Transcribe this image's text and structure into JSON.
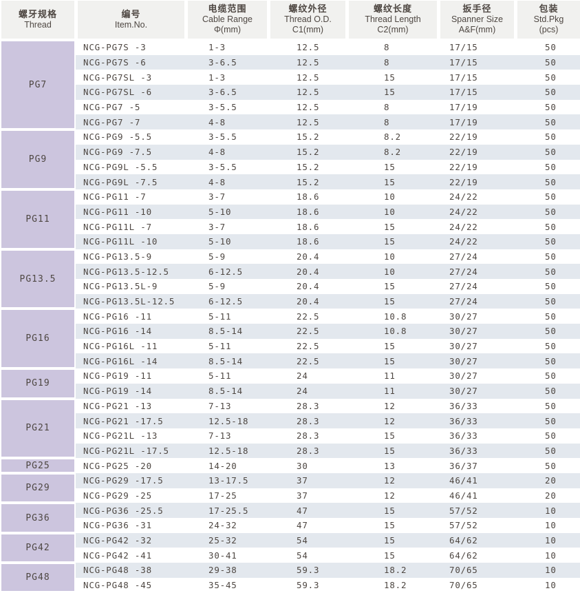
{
  "colors": {
    "thread_block": "#ccc5de",
    "header_bg": "#f1f1ef",
    "row_stripe": "#e3e8ee",
    "text": "#4e4742"
  },
  "columns": [
    {
      "zh": "螺牙规格",
      "en": "Thread",
      "sub": ""
    },
    {
      "zh": "编号",
      "en": "Item.No.",
      "sub": ""
    },
    {
      "zh": "电缆范围",
      "en": "Cable Range",
      "sub": "Φ(mm)"
    },
    {
      "zh": "螺纹外径",
      "en": "Thread O.D.",
      "sub": "C1(mm)"
    },
    {
      "zh": "螺纹长度",
      "en": "Thread Length",
      "sub": "C2(mm)"
    },
    {
      "zh": "扳手径",
      "en": "Spanner Size",
      "sub": "A&F(mm)"
    },
    {
      "zh": "包装",
      "en": "Std.Pkg",
      "sub": "(pcs)"
    }
  ],
  "groups": [
    {
      "thread": "PG7",
      "rows": [
        {
          "item": "NCG-PG7S -3",
          "cable": "1-3",
          "od": "12.5",
          "len": "8",
          "spanner": "17/15",
          "pkg": "50"
        },
        {
          "item": "NCG-PG7S -6",
          "cable": "3-6.5",
          "od": "12.5",
          "len": "8",
          "spanner": "17/15",
          "pkg": "50"
        },
        {
          "item": "NCG-PG7SL -3",
          "cable": "1-3",
          "od": "12.5",
          "len": "15",
          "spanner": "17/15",
          "pkg": "50"
        },
        {
          "item": "NCG-PG7SL -6",
          "cable": "3-6.5",
          "od": "12.5",
          "len": "15",
          "spanner": "17/15",
          "pkg": "50"
        },
        {
          "item": "NCG-PG7 -5",
          "cable": "3-5.5",
          "od": "12.5",
          "len": "8",
          "spanner": "17/19",
          "pkg": "50"
        },
        {
          "item": "NCG-PG7 -7",
          "cable": "4-8",
          "od": "12.5",
          "len": "8",
          "spanner": "17/19",
          "pkg": "50"
        }
      ]
    },
    {
      "thread": "PG9",
      "rows": [
        {
          "item": "NCG-PG9 -5.5",
          "cable": "3-5.5",
          "od": "15.2",
          "len": "8.2",
          "spanner": "22/19",
          "pkg": "50"
        },
        {
          "item": "NCG-PG9 -7.5",
          "cable": "4-8",
          "od": "15.2",
          "len": "8.2",
          "spanner": "22/19",
          "pkg": "50"
        },
        {
          "item": "NCG-PG9L -5.5",
          "cable": "3-5.5",
          "od": "15.2",
          "len": "15",
          "spanner": "22/19",
          "pkg": "50"
        },
        {
          "item": "NCG-PG9L -7.5",
          "cable": "4-8",
          "od": "15.2",
          "len": "15",
          "spanner": "22/19",
          "pkg": "50"
        }
      ]
    },
    {
      "thread": "PG11",
      "rows": [
        {
          "item": "NCG-PG11 -7",
          "cable": "3-7",
          "od": "18.6",
          "len": "10",
          "spanner": "24/22",
          "pkg": "50"
        },
        {
          "item": "NCG-PG11 -10",
          "cable": "5-10",
          "od": "18.6",
          "len": "10",
          "spanner": "24/22",
          "pkg": "50"
        },
        {
          "item": "NCG-PG11L -7",
          "cable": "3-7",
          "od": "18.6",
          "len": "15",
          "spanner": "24/22",
          "pkg": "50"
        },
        {
          "item": "NCG-PG11L -10",
          "cable": "5-10",
          "od": "18.6",
          "len": "15",
          "spanner": "24/22",
          "pkg": "50"
        }
      ]
    },
    {
      "thread": "PG13.5",
      "rows": [
        {
          "item": "NCG-PG13.5-9",
          "cable": "5-9",
          "od": "20.4",
          "len": "10",
          "spanner": "27/24",
          "pkg": "50"
        },
        {
          "item": "NCG-PG13.5-12.5",
          "cable": "6-12.5",
          "od": "20.4",
          "len": "10",
          "spanner": "27/24",
          "pkg": "50"
        },
        {
          "item": "NCG-PG13.5L-9",
          "cable": "5-9",
          "od": "20.4",
          "len": "15",
          "spanner": "27/24",
          "pkg": "50"
        },
        {
          "item": "NCG-PG13.5L-12.5",
          "cable": "6-12.5",
          "od": "20.4",
          "len": "15",
          "spanner": "27/24",
          "pkg": "50"
        }
      ]
    },
    {
      "thread": "PG16",
      "rows": [
        {
          "item": "NCG-PG16 -11",
          "cable": "5-11",
          "od": "22.5",
          "len": "10.8",
          "spanner": "30/27",
          "pkg": "50"
        },
        {
          "item": "NCG-PG16 -14",
          "cable": "8.5-14",
          "od": "22.5",
          "len": "10.8",
          "spanner": "30/27",
          "pkg": "50"
        },
        {
          "item": "NCG-PG16L -11",
          "cable": "5-11",
          "od": "22.5",
          "len": "15",
          "spanner": "30/27",
          "pkg": "50"
        },
        {
          "item": "NCG-PG16L -14",
          "cable": "8.5-14",
          "od": "22.5",
          "len": "15",
          "spanner": "30/27",
          "pkg": "50"
        }
      ]
    },
    {
      "thread": "PG19",
      "rows": [
        {
          "item": "NCG-PG19 -11",
          "cable": "5-11",
          "od": "24",
          "len": "11",
          "spanner": "30/27",
          "pkg": "50"
        },
        {
          "item": "NCG-PG19 -14",
          "cable": "8.5-14",
          "od": "24",
          "len": "11",
          "spanner": "30/27",
          "pkg": "50"
        }
      ]
    },
    {
      "thread": "PG21",
      "rows": [
        {
          "item": "NCG-PG21 -13",
          "cable": "7-13",
          "od": "28.3",
          "len": "12",
          "spanner": "36/33",
          "pkg": "50"
        },
        {
          "item": "NCG-PG21 -17.5",
          "cable": "12.5-18",
          "od": "28.3",
          "len": "12",
          "spanner": "36/33",
          "pkg": "50"
        },
        {
          "item": "NCG-PG21L -13",
          "cable": "7-13",
          "od": "28.3",
          "len": "15",
          "spanner": "36/33",
          "pkg": "50"
        },
        {
          "item": "NCG-PG21L -17.5",
          "cable": "12.5-18",
          "od": "28.3",
          "len": "15",
          "spanner": "36/33",
          "pkg": "50"
        }
      ]
    },
    {
      "thread": "PG25",
      "rows": [
        {
          "item": "NCG-PG25 -20",
          "cable": "14-20",
          "od": "30",
          "len": "13",
          "spanner": "36/37",
          "pkg": "50"
        }
      ]
    },
    {
      "thread": "PG29",
      "rows": [
        {
          "item": "NCG-PG29 -17.5",
          "cable": "13-17.5",
          "od": "37",
          "len": "12",
          "spanner": "46/41",
          "pkg": "20"
        },
        {
          "item": "NCG-PG29 -25",
          "cable": "17-25",
          "od": "37",
          "len": "12",
          "spanner": "46/41",
          "pkg": "20"
        }
      ]
    },
    {
      "thread": "PG36",
      "rows": [
        {
          "item": "NCG-PG36 -25.5",
          "cable": "17-25.5",
          "od": "47",
          "len": "15",
          "spanner": "57/52",
          "pkg": "10"
        },
        {
          "item": "NCG-PG36 -31",
          "cable": "24-32",
          "od": "47",
          "len": "15",
          "spanner": "57/52",
          "pkg": "10"
        }
      ]
    },
    {
      "thread": "PG42",
      "rows": [
        {
          "item": "NCG-PG42 -32",
          "cable": "25-32",
          "od": "54",
          "len": "15",
          "spanner": "64/62",
          "pkg": "10"
        },
        {
          "item": "NCG-PG42 -41",
          "cable": "30-41",
          "od": "54",
          "len": "15",
          "spanner": "64/62",
          "pkg": "10"
        }
      ]
    },
    {
      "thread": "PG48",
      "rows": [
        {
          "item": "NCG-PG48 -38",
          "cable": "29-38",
          "od": "59.3",
          "len": "18.2",
          "spanner": "70/65",
          "pkg": "10"
        },
        {
          "item": "NCG-PG48 -45",
          "cable": "35-45",
          "od": "59.3",
          "len": "18.2",
          "spanner": "70/65",
          "pkg": "10"
        }
      ]
    }
  ]
}
